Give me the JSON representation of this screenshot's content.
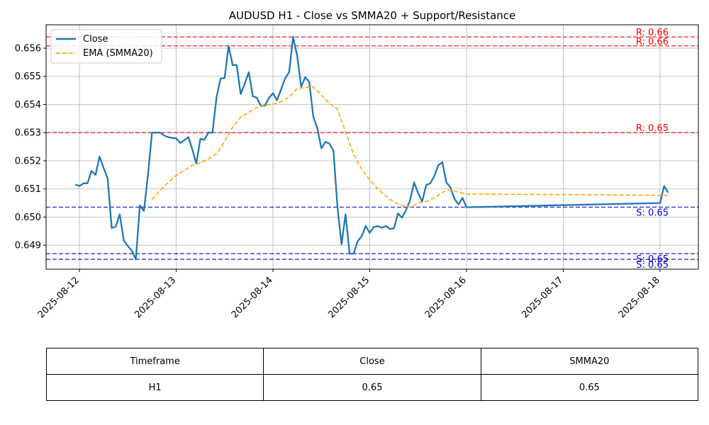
{
  "chart_data": {
    "type": "line",
    "title": "AUDUSD H1 - Close vs SMMA20 + Support/Resistance",
    "x_ticks": [
      "2025-08-12",
      "2025-08-13",
      "2025-08-14",
      "2025-08-15",
      "2025-08-16",
      "2025-08-17",
      "2025-08-18"
    ],
    "y_ticks": [
      "0.649",
      "0.650",
      "0.651",
      "0.652",
      "0.653",
      "0.654",
      "0.655",
      "0.656"
    ],
    "ylim": [
      0.64815,
      0.65683
    ],
    "grid": true,
    "legend_position": "top-left",
    "series": [
      {
        "name": "Close",
        "color": "#1f77b4",
        "style": "solid",
        "points": [
          [
            "2025-08-11 23:00",
            0.65116
          ],
          [
            "2025-08-12 00:00",
            0.6511
          ],
          [
            "2025-08-12 01:00",
            0.6512
          ],
          [
            "2025-08-12 02:00",
            0.6512
          ],
          [
            "2025-08-12 03:00",
            0.65164
          ],
          [
            "2025-08-12 04:00",
            0.6515
          ],
          [
            "2025-08-12 05:00",
            0.65215
          ],
          [
            "2025-08-12 06:00",
            0.65175
          ],
          [
            "2025-08-12 07:00",
            0.65137
          ],
          [
            "2025-08-12 08:00",
            0.64962
          ],
          [
            "2025-08-12 09:00",
            0.64966
          ],
          [
            "2025-08-12 10:00",
            0.6501
          ],
          [
            "2025-08-12 11:00",
            0.64917
          ],
          [
            "2025-08-12 12:00",
            0.64897
          ],
          [
            "2025-08-12 13:00",
            0.64881
          ],
          [
            "2025-08-12 14:00",
            0.6485
          ],
          [
            "2025-08-12 15:00",
            0.65042
          ],
          [
            "2025-08-12 16:00",
            0.65022
          ],
          [
            "2025-08-12 17:00",
            0.6515
          ],
          [
            "2025-08-12 18:00",
            0.653
          ],
          [
            "2025-08-12 19:00",
            0.653
          ],
          [
            "2025-08-12 20:00",
            0.653
          ],
          [
            "2025-08-12 21:00",
            0.6529
          ],
          [
            "2025-08-12 22:00",
            0.65284
          ],
          [
            "2025-08-12 23:00",
            0.65281
          ],
          [
            "2025-08-13 00:00",
            0.6528
          ],
          [
            "2025-08-13 01:00",
            0.65263
          ],
          [
            "2025-08-13 02:00",
            0.65273
          ],
          [
            "2025-08-13 03:00",
            0.65284
          ],
          [
            "2025-08-13 04:00",
            0.6524
          ],
          [
            "2025-08-13 05:00",
            0.6519
          ],
          [
            "2025-08-13 06:00",
            0.65278
          ],
          [
            "2025-08-13 07:00",
            0.65275
          ],
          [
            "2025-08-13 08:00",
            0.653
          ],
          [
            "2025-08-13 09:00",
            0.653
          ],
          [
            "2025-08-13 10:00",
            0.65425
          ],
          [
            "2025-08-13 11:00",
            0.65492
          ],
          [
            "2025-08-13 12:00",
            0.65494
          ],
          [
            "2025-08-13 13:00",
            0.65608
          ],
          [
            "2025-08-13 14:00",
            0.6554
          ],
          [
            "2025-08-13 15:00",
            0.6554
          ],
          [
            "2025-08-13 16:00",
            0.65437
          ],
          [
            "2025-08-13 17:00",
            0.65474
          ],
          [
            "2025-08-13 18:00",
            0.65515
          ],
          [
            "2025-08-13 19:00",
            0.65429
          ],
          [
            "2025-08-13 20:00",
            0.65424
          ],
          [
            "2025-08-13 21:00",
            0.65394
          ],
          [
            "2025-08-13 22:00",
            0.65396
          ],
          [
            "2025-08-13 23:00",
            0.65423
          ],
          [
            "2025-08-14 00:00",
            0.6544
          ],
          [
            "2025-08-14 01:00",
            0.65415
          ],
          [
            "2025-08-14 02:00",
            0.65453
          ],
          [
            "2025-08-14 03:00",
            0.65492
          ],
          [
            "2025-08-14 04:00",
            0.65515
          ],
          [
            "2025-08-14 05:00",
            0.6564
          ],
          [
            "2025-08-14 06:00",
            0.65573
          ],
          [
            "2025-08-14 07:00",
            0.65463
          ],
          [
            "2025-08-14 08:00",
            0.65497
          ],
          [
            "2025-08-14 09:00",
            0.6548
          ],
          [
            "2025-08-14 10:00",
            0.65357
          ],
          [
            "2025-08-14 11:00",
            0.65315
          ],
          [
            "2025-08-14 12:00",
            0.65244
          ],
          [
            "2025-08-14 13:00",
            0.65267
          ],
          [
            "2025-08-14 14:00",
            0.65261
          ],
          [
            "2025-08-14 15:00",
            0.65236
          ],
          [
            "2025-08-14 16:00",
            0.65035
          ],
          [
            "2025-08-14 17:00",
            0.64903
          ],
          [
            "2025-08-14 18:00",
            0.6501
          ],
          [
            "2025-08-14 19:00",
            0.6487
          ],
          [
            "2025-08-14 20:00",
            0.6487
          ],
          [
            "2025-08-14 21:00",
            0.64914
          ],
          [
            "2025-08-14 22:00",
            0.64932
          ],
          [
            "2025-08-14 23:00",
            0.64968
          ],
          [
            "2025-08-15 00:00",
            0.64944
          ],
          [
            "2025-08-15 01:00",
            0.64965
          ],
          [
            "2025-08-15 02:00",
            0.64968
          ],
          [
            "2025-08-15 03:00",
            0.64962
          ],
          [
            "2025-08-15 04:00",
            0.64968
          ],
          [
            "2025-08-15 05:00",
            0.64958
          ],
          [
            "2025-08-15 06:00",
            0.6496
          ],
          [
            "2025-08-15 07:00",
            0.65013
          ],
          [
            "2025-08-15 08:00",
            0.64998
          ],
          [
            "2025-08-15 09:00",
            0.65025
          ],
          [
            "2025-08-15 10:00",
            0.6506
          ],
          [
            "2025-08-15 11:00",
            0.65123
          ],
          [
            "2025-08-15 12:00",
            0.65085
          ],
          [
            "2025-08-15 13:00",
            0.65055
          ],
          [
            "2025-08-15 14:00",
            0.65114
          ],
          [
            "2025-08-15 15:00",
            0.6512
          ],
          [
            "2025-08-15 16:00",
            0.65145
          ],
          [
            "2025-08-15 17:00",
            0.65184
          ],
          [
            "2025-08-15 18:00",
            0.65195
          ],
          [
            "2025-08-15 19:00",
            0.65123
          ],
          [
            "2025-08-15 20:00",
            0.65105
          ],
          [
            "2025-08-15 21:00",
            0.65065
          ],
          [
            "2025-08-15 22:00",
            0.65045
          ],
          [
            "2025-08-15 23:00",
            0.65068
          ],
          [
            "2025-08-16 00:00",
            0.65035
          ],
          [
            "2025-08-18 00:00",
            0.6505
          ],
          [
            "2025-08-18 01:00",
            0.6511
          ],
          [
            "2025-08-18 02:00",
            0.65087
          ]
        ]
      },
      {
        "name": "EMA (SMMA20)",
        "color": "#ffa500",
        "style": "dashed",
        "points": [
          [
            "2025-08-12 18:00",
            0.65062
          ],
          [
            "2025-08-12 20:00",
            0.65095
          ],
          [
            "2025-08-12 22:00",
            0.65123
          ],
          [
            "2025-08-13 00:00",
            0.65148
          ],
          [
            "2025-08-13 02:00",
            0.65166
          ],
          [
            "2025-08-13 04:00",
            0.65184
          ],
          [
            "2025-08-13 06:00",
            0.65193
          ],
          [
            "2025-08-13 08:00",
            0.65207
          ],
          [
            "2025-08-13 10:00",
            0.65225
          ],
          [
            "2025-08-13 12:00",
            0.65268
          ],
          [
            "2025-08-13 14:00",
            0.6532
          ],
          [
            "2025-08-13 16:00",
            0.65355
          ],
          [
            "2025-08-13 18:00",
            0.65372
          ],
          [
            "2025-08-13 20:00",
            0.6539
          ],
          [
            "2025-08-13 22:00",
            0.65397
          ],
          [
            "2025-08-14 00:00",
            0.654
          ],
          [
            "2025-08-14 02:00",
            0.6541
          ],
          [
            "2025-08-14 04:00",
            0.65425
          ],
          [
            "2025-08-14 06:00",
            0.65457
          ],
          [
            "2025-08-14 08:00",
            0.6546
          ],
          [
            "2025-08-14 10:00",
            0.65463
          ],
          [
            "2025-08-14 12:00",
            0.65433
          ],
          [
            "2025-08-14 14:00",
            0.65405
          ],
          [
            "2025-08-14 16:00",
            0.65383
          ],
          [
            "2025-08-14 18:00",
            0.65303
          ],
          [
            "2025-08-14 20:00",
            0.65223
          ],
          [
            "2025-08-14 22:00",
            0.6517
          ],
          [
            "2025-08-15 00:00",
            0.65132
          ],
          [
            "2025-08-15 02:00",
            0.651
          ],
          [
            "2025-08-15 04:00",
            0.65075
          ],
          [
            "2025-08-15 06:00",
            0.65053
          ],
          [
            "2025-08-15 08:00",
            0.65042
          ],
          [
            "2025-08-15 10:00",
            0.65036
          ],
          [
            "2025-08-15 12:00",
            0.6505
          ],
          [
            "2025-08-15 14:00",
            0.65055
          ],
          [
            "2025-08-15 16:00",
            0.65068
          ],
          [
            "2025-08-15 18:00",
            0.65088
          ],
          [
            "2025-08-15 20:00",
            0.65097
          ],
          [
            "2025-08-15 22:00",
            0.65088
          ],
          [
            "2025-08-16 00:00",
            0.65082
          ],
          [
            "2025-08-17 00:00",
            0.6508
          ],
          [
            "2025-08-18 02:00",
            0.65077
          ]
        ]
      }
    ],
    "reference_lines": [
      {
        "kind": "resistance",
        "value": 0.6564,
        "label": "R: 0.66",
        "color": "#ff0000"
      },
      {
        "kind": "resistance",
        "value": 0.65608,
        "label": "R: 0.66",
        "color": "#ff0000"
      },
      {
        "kind": "resistance",
        "value": 0.653,
        "label": "R: 0.65",
        "color": "#ff0000"
      },
      {
        "kind": "support",
        "value": 0.65035,
        "label": "S: 0.65",
        "color": "#0000cd"
      },
      {
        "kind": "support",
        "value": 0.6487,
        "label": "S: 0.65",
        "color": "#0000cd"
      },
      {
        "kind": "support",
        "value": 0.6485,
        "label": "S: 0.65",
        "color": "#0000cd"
      }
    ]
  },
  "table": {
    "headers": [
      "Timeframe",
      "Close",
      "SMMA20"
    ],
    "rows": [
      [
        "H1",
        "0.65",
        "0.65"
      ]
    ]
  }
}
